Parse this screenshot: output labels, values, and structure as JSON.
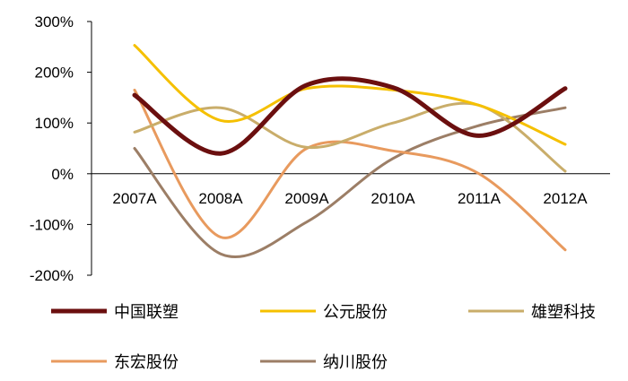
{
  "chart_data": {
    "type": "line",
    "title": "",
    "xlabel": "",
    "ylabel": "",
    "categories": [
      "2007A",
      "2008A",
      "2009A",
      "2010A",
      "2011A",
      "2012A"
    ],
    "ylim": [
      -200,
      300
    ],
    "yticks": [
      300,
      200,
      100,
      0,
      -100,
      -200
    ],
    "ytick_labels": [
      "300%",
      "200%",
      "100%",
      "0%",
      "-100%",
      "-200%"
    ],
    "grid": false,
    "legend_position": "bottom",
    "series": [
      {
        "name": "中国联塑",
        "color": "#6b0f0f",
        "width": 5,
        "values": [
          155,
          40,
          175,
          170,
          75,
          168
        ]
      },
      {
        "name": "公元股份",
        "color": "#f5c000",
        "width": 3,
        "values": [
          253,
          105,
          168,
          165,
          135,
          58
        ]
      },
      {
        "name": "雄塑科技",
        "color": "#c9ad6a",
        "width": 3,
        "values": [
          82,
          130,
          52,
          100,
          135,
          5
        ]
      },
      {
        "name": "东宏股份",
        "color": "#e89a5e",
        "width": 3,
        "values": [
          165,
          -125,
          50,
          45,
          0,
          -150
        ]
      },
      {
        "name": "纳川股份",
        "color": "#9c7e66",
        "width": 3,
        "values": [
          50,
          -158,
          -95,
          30,
          95,
          130
        ]
      }
    ]
  }
}
